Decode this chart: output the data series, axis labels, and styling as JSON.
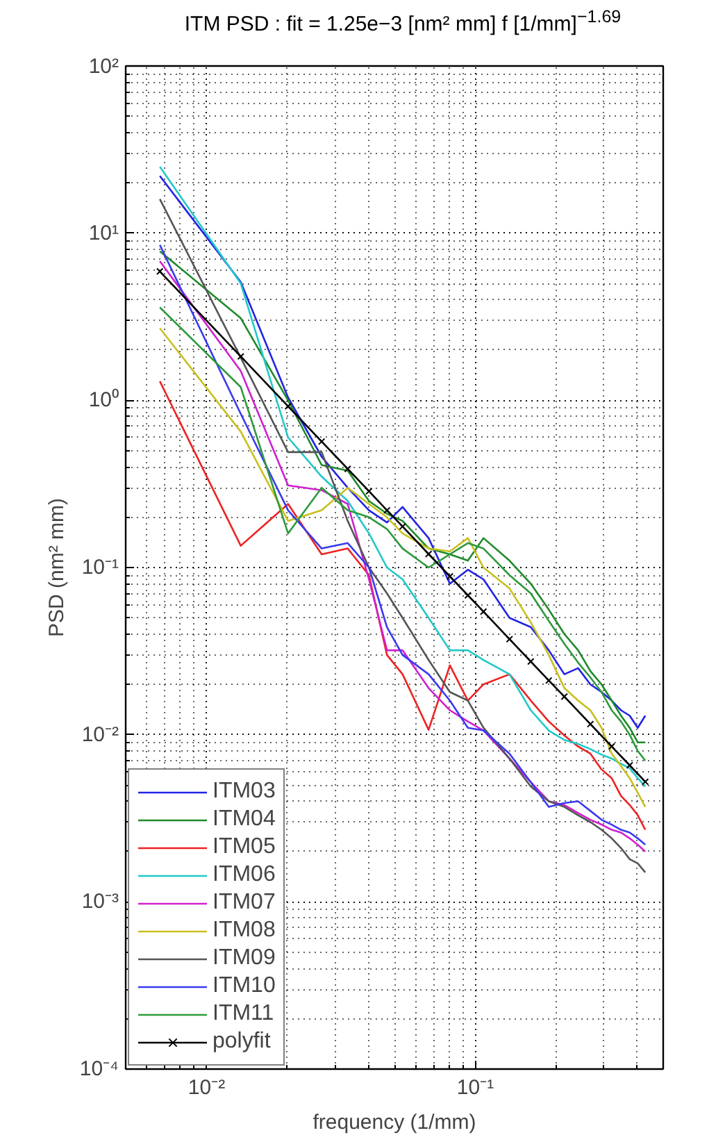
{
  "chart_data": {
    "type": "line",
    "title": "ITM PSD : fit = 1.25e−3 [nm² mm] f [1/mm]$^{−1.69}$",
    "xlabel": "frequency (1/mm)",
    "ylabel": "PSD (nm² mm)",
    "log": "xy",
    "grid": true,
    "legend": "bottom left",
    "xlim": [
      0.005,
      0.5
    ],
    "ylim": [
      0.0001,
      100
    ],
    "xticks": [
      {
        "value": 0.01,
        "label": "10⁻²"
      },
      {
        "value": 0.1,
        "label": "10⁻¹"
      }
    ],
    "yticks": [
      {
        "value": 0.0001,
        "label": "10⁻⁴"
      },
      {
        "value": 0.001,
        "label": "10⁻³"
      },
      {
        "value": 0.01,
        "label": "10⁻²"
      },
      {
        "value": 0.1,
        "label": "10⁻¹"
      },
      {
        "value": 1,
        "label": "10⁰"
      },
      {
        "value": 10,
        "label": "10¹"
      },
      {
        "value": 100,
        "label": "10²"
      }
    ],
    "x": [
      0.0067,
      0.0134,
      0.0201,
      0.0268,
      0.0335,
      0.0402,
      0.0469,
      0.0536,
      0.067,
      0.0804,
      0.0938,
      0.1072,
      0.134,
      0.1608,
      0.1876,
      0.2144,
      0.2412,
      0.268,
      0.2948,
      0.3216,
      0.3484,
      0.3752,
      0.402,
      0.4288
    ],
    "series": [
      {
        "name": "ITM03",
        "color": "#2323e6",
        "values": [
          22,
          5.1,
          1.04,
          0.46,
          0.3,
          0.22,
          0.186,
          0.23,
          0.15,
          0.08,
          0.097,
          0.085,
          0.05,
          0.044,
          0.032,
          0.023,
          0.025,
          0.02,
          0.018,
          0.016,
          0.014,
          0.013,
          0.011,
          0.013
        ]
      },
      {
        "name": "ITM04",
        "color": "#1e8a2a",
        "values": [
          7.8,
          3.1,
          1.0,
          0.41,
          0.38,
          0.25,
          0.21,
          0.19,
          0.13,
          0.12,
          0.11,
          0.15,
          0.11,
          0.08,
          0.056,
          0.04,
          0.032,
          0.024,
          0.02,
          0.016,
          0.013,
          0.011,
          0.009,
          0.009
        ]
      },
      {
        "name": "ITM05",
        "color": "#ee2222",
        "values": [
          1.3,
          0.135,
          0.24,
          0.12,
          0.13,
          0.09,
          0.03,
          0.023,
          0.0107,
          0.026,
          0.016,
          0.02,
          0.023,
          0.016,
          0.012,
          0.0099,
          0.0085,
          0.0077,
          0.0062,
          0.0055,
          0.0043,
          0.0038,
          0.0033,
          0.0027
        ]
      },
      {
        "name": "ITM06",
        "color": "#22c8c8",
        "values": [
          25,
          5,
          0.6,
          0.35,
          0.25,
          0.16,
          0.1,
          0.085,
          0.05,
          0.032,
          0.032,
          0.028,
          0.023,
          0.014,
          0.0106,
          0.0093,
          0.0088,
          0.0082,
          0.0076,
          0.0072,
          0.0067,
          0.0063,
          0.0055,
          0.0049
        ]
      },
      {
        "name": "ITM07",
        "color": "#d020d0",
        "values": [
          6.8,
          1.5,
          0.31,
          0.29,
          0.24,
          0.085,
          0.032,
          0.032,
          0.019,
          0.014,
          0.012,
          0.0106,
          0.0072,
          0.0052,
          0.004,
          0.0038,
          0.0034,
          0.0031,
          0.0029,
          0.0027,
          0.0026,
          0.0024,
          0.0022,
          0.002
        ]
      },
      {
        "name": "ITM08",
        "color": "#c8c020",
        "values": [
          2.7,
          0.65,
          0.19,
          0.22,
          0.3,
          0.24,
          0.2,
          0.16,
          0.13,
          0.125,
          0.15,
          0.1,
          0.075,
          0.047,
          0.03,
          0.019,
          0.016,
          0.014,
          0.011,
          0.0077,
          0.0065,
          0.0055,
          0.0045,
          0.0037
        ]
      },
      {
        "name": "ITM09",
        "color": "#555555",
        "values": [
          16,
          1.8,
          0.49,
          0.49,
          0.19,
          0.1,
          0.07,
          0.05,
          0.028,
          0.018,
          0.016,
          0.011,
          0.0072,
          0.0049,
          0.004,
          0.0037,
          0.0033,
          0.003,
          0.0027,
          0.0024,
          0.0021,
          0.0018,
          0.0017,
          0.0015
        ]
      },
      {
        "name": "ITM10",
        "color": "#3a3af0",
        "values": [
          8.5,
          0.83,
          0.22,
          0.13,
          0.14,
          0.1,
          0.044,
          0.03,
          0.023,
          0.016,
          0.011,
          0.0106,
          0.0077,
          0.0052,
          0.0037,
          0.0039,
          0.004,
          0.0035,
          0.0031,
          0.0029,
          0.0027,
          0.0026,
          0.0024,
          0.0022
        ]
      },
      {
        "name": "ITM11",
        "color": "#2e9a3c",
        "values": [
          3.6,
          1.2,
          0.16,
          0.3,
          0.22,
          0.2,
          0.17,
          0.13,
          0.1,
          0.12,
          0.14,
          0.13,
          0.09,
          0.07,
          0.048,
          0.035,
          0.027,
          0.022,
          0.018,
          0.014,
          0.012,
          0.01,
          0.008,
          0.007
        ]
      },
      {
        "name": "polyfit",
        "color": "#000000",
        "marker": "cross",
        "x": [
          0.0067,
          0.0134,
          0.0201,
          0.0268,
          0.0335,
          0.0402,
          0.0469,
          0.0536,
          0.067,
          0.0804,
          0.0938,
          0.1072,
          0.134,
          0.1608,
          0.1876,
          0.2144,
          0.268,
          0.3216,
          0.3752,
          0.4288
        ],
        "values": [
          5.9,
          1.83,
          0.922,
          0.567,
          0.389,
          0.286,
          0.22,
          0.176,
          0.1205,
          0.0885,
          0.0682,
          0.0545,
          0.0373,
          0.0274,
          0.0211,
          0.0169,
          0.01157,
          0.00851,
          0.00656,
          0.00523
        ]
      }
    ]
  }
}
